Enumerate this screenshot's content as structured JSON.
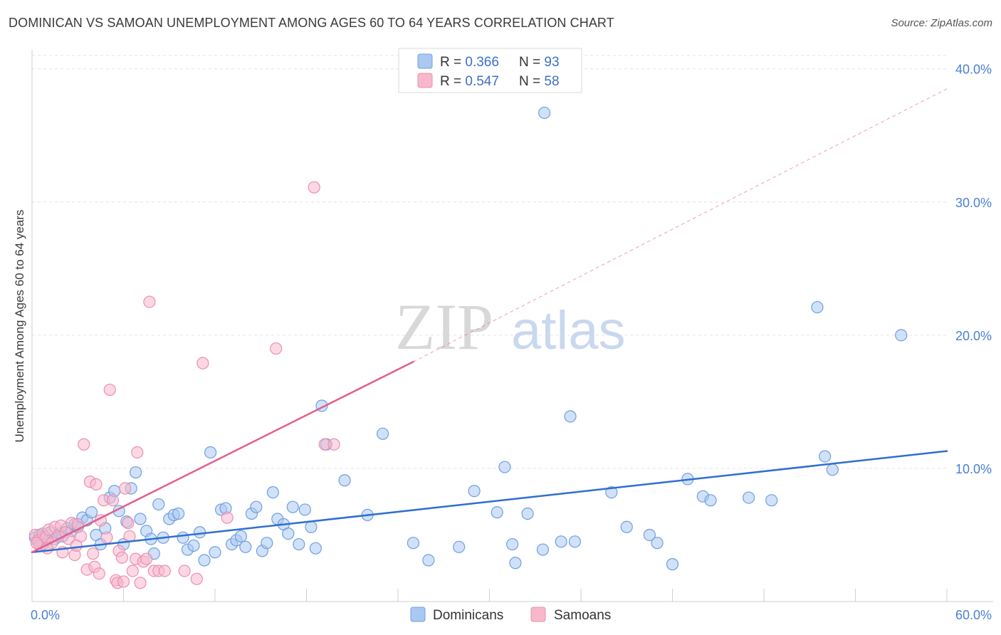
{
  "title": "DOMINICAN VS SAMOAN UNEMPLOYMENT AMONG AGES 60 TO 64 YEARS CORRELATION CHART",
  "source": "Source: ZipAtlas.com",
  "watermark": {
    "zip": "ZIP",
    "atlas": "atlas"
  },
  "colors": {
    "dominican_fill": "#a9c8f2",
    "dominican_stroke": "#6f9fe0",
    "dominican_line": "#2f6fce",
    "samoan_fill": "#f7b8cc",
    "samoan_stroke": "#ec8fae",
    "samoan_line": "#e0608c",
    "axis_text": "#4a7fd0",
    "grid": "#e3e3e3"
  },
  "legend": {
    "rows": [
      {
        "r_label": "R = ",
        "r_value": "0.366",
        "n_label": "N = ",
        "n_value": "93"
      },
      {
        "r_label": "R = ",
        "r_value": "0.547",
        "n_label": "N = ",
        "n_value": "58"
      }
    ]
  },
  "bottom_legend": [
    "Dominicans",
    "Samoans"
  ],
  "chart_data": {
    "type": "scatter",
    "title": "DOMINICAN VS SAMOAN UNEMPLOYMENT AMONG AGES 60 TO 64 YEARS CORRELATION CHART",
    "xlabel": "",
    "ylabel": "Unemployment Among Ages 60 to 64 years",
    "xlim": [
      0,
      60
    ],
    "ylim": [
      0,
      41
    ],
    "x_tick_labels": [
      "0.0%",
      "60.0%"
    ],
    "y_ticks": [
      10,
      20,
      30,
      40
    ],
    "y_tick_labels": [
      "10.0%",
      "20.0%",
      "30.0%",
      "40.0%"
    ],
    "grid": true,
    "legend_position": "top-center",
    "series": [
      {
        "name": "Dominicans",
        "R": 0.366,
        "N": 93,
        "trend": {
          "x": [
            0,
            60
          ],
          "y": [
            3.7,
            11.3
          ],
          "style": "solid"
        },
        "points": [
          [
            0.2,
            4.8
          ],
          [
            0.4,
            4.5
          ],
          [
            0.5,
            5.0
          ],
          [
            0.7,
            4.3
          ],
          [
            0.8,
            4.9
          ],
          [
            1.0,
            4.6
          ],
          [
            1.2,
            5.2
          ],
          [
            1.5,
            4.7
          ],
          [
            1.8,
            5.1
          ],
          [
            2.0,
            4.9
          ],
          [
            2.3,
            5.5
          ],
          [
            2.6,
            5.3
          ],
          [
            2.8,
            5.8
          ],
          [
            3.0,
            5.6
          ],
          [
            3.3,
            6.3
          ],
          [
            3.6,
            6.1
          ],
          [
            3.9,
            6.7
          ],
          [
            4.2,
            5.0
          ],
          [
            4.5,
            4.3
          ],
          [
            4.8,
            5.5
          ],
          [
            5.1,
            7.8
          ],
          [
            5.4,
            8.3
          ],
          [
            5.7,
            6.8
          ],
          [
            6.0,
            4.3
          ],
          [
            6.2,
            6.0
          ],
          [
            6.5,
            8.5
          ],
          [
            6.8,
            9.7
          ],
          [
            7.1,
            6.2
          ],
          [
            7.5,
            5.3
          ],
          [
            7.8,
            4.7
          ],
          [
            8.0,
            3.6
          ],
          [
            8.3,
            7.3
          ],
          [
            8.6,
            4.8
          ],
          [
            9.0,
            6.2
          ],
          [
            9.3,
            6.5
          ],
          [
            9.6,
            6.6
          ],
          [
            9.9,
            4.8
          ],
          [
            10.2,
            3.9
          ],
          [
            10.6,
            4.2
          ],
          [
            11.0,
            5.2
          ],
          [
            11.3,
            3.1
          ],
          [
            11.7,
            11.2
          ],
          [
            12.0,
            3.7
          ],
          [
            12.4,
            6.9
          ],
          [
            12.7,
            7.0
          ],
          [
            13.1,
            4.3
          ],
          [
            13.4,
            4.6
          ],
          [
            13.7,
            4.9
          ],
          [
            14.0,
            4.1
          ],
          [
            14.4,
            6.6
          ],
          [
            14.7,
            7.1
          ],
          [
            15.1,
            3.8
          ],
          [
            15.4,
            4.4
          ],
          [
            15.8,
            8.2
          ],
          [
            16.1,
            6.2
          ],
          [
            16.5,
            5.8
          ],
          [
            16.8,
            5.1
          ],
          [
            17.1,
            7.1
          ],
          [
            17.5,
            4.3
          ],
          [
            17.9,
            6.9
          ],
          [
            18.3,
            5.6
          ],
          [
            18.6,
            4.0
          ],
          [
            19.0,
            14.7
          ],
          [
            19.3,
            11.8
          ],
          [
            20.5,
            9.1
          ],
          [
            22.0,
            6.5
          ],
          [
            23.0,
            12.6
          ],
          [
            25.0,
            4.4
          ],
          [
            26.0,
            3.1
          ],
          [
            28.0,
            4.1
          ],
          [
            29.0,
            8.3
          ],
          [
            30.5,
            6.7
          ],
          [
            31.0,
            10.1
          ],
          [
            31.5,
            4.3
          ],
          [
            31.7,
            2.9
          ],
          [
            32.5,
            6.6
          ],
          [
            33.5,
            3.9
          ],
          [
            33.6,
            36.7
          ],
          [
            34.7,
            4.5
          ],
          [
            35.3,
            13.9
          ],
          [
            35.6,
            4.5
          ],
          [
            38.0,
            8.2
          ],
          [
            39.0,
            5.6
          ],
          [
            40.5,
            5.0
          ],
          [
            41.0,
            4.4
          ],
          [
            42.0,
            2.8
          ],
          [
            43.0,
            9.2
          ],
          [
            44.0,
            7.9
          ],
          [
            44.5,
            7.6
          ],
          [
            47.0,
            7.8
          ],
          [
            48.5,
            7.6
          ],
          [
            51.5,
            22.1
          ],
          [
            52.0,
            10.9
          ],
          [
            52.5,
            9.9
          ],
          [
            57.0,
            20.0
          ]
        ]
      },
      {
        "name": "Samoans",
        "R": 0.547,
        "N": 58,
        "trend": {
          "x": [
            0,
            25
          ],
          "y": [
            3.7,
            18.0
          ],
          "style": "solid",
          "extended": {
            "x": [
              25,
              60
            ],
            "y": [
              18.0,
              38.5
            ],
            "style": "dashed"
          }
        },
        "points": [
          [
            0.2,
            5.0
          ],
          [
            0.4,
            4.6
          ],
          [
            0.5,
            4.2
          ],
          [
            0.7,
            5.1
          ],
          [
            0.9,
            4.8
          ],
          [
            1.1,
            5.4
          ],
          [
            1.3,
            4.4
          ],
          [
            1.5,
            5.6
          ],
          [
            1.7,
            4.9
          ],
          [
            1.9,
            5.7
          ],
          [
            2.0,
            3.7
          ],
          [
            2.2,
            5.2
          ],
          [
            2.4,
            4.7
          ],
          [
            2.6,
            5.9
          ],
          [
            2.8,
            3.5
          ],
          [
            3.0,
            5.8
          ],
          [
            3.2,
            4.9
          ],
          [
            3.4,
            11.8
          ],
          [
            3.6,
            2.4
          ],
          [
            3.8,
            9.0
          ],
          [
            4.0,
            3.6
          ],
          [
            4.1,
            2.6
          ],
          [
            4.2,
            8.8
          ],
          [
            4.4,
            2.1
          ],
          [
            4.5,
            6.1
          ],
          [
            4.7,
            7.6
          ],
          [
            4.9,
            4.8
          ],
          [
            5.1,
            15.9
          ],
          [
            5.3,
            7.6
          ],
          [
            5.5,
            1.6
          ],
          [
            5.6,
            1.4
          ],
          [
            5.7,
            3.8
          ],
          [
            5.9,
            3.3
          ],
          [
            6.0,
            1.5
          ],
          [
            6.1,
            8.5
          ],
          [
            6.3,
            5.9
          ],
          [
            6.4,
            4.9
          ],
          [
            6.6,
            2.3
          ],
          [
            6.8,
            3.2
          ],
          [
            6.9,
            11.2
          ],
          [
            7.1,
            1.4
          ],
          [
            7.3,
            3.0
          ],
          [
            7.5,
            3.2
          ],
          [
            7.7,
            22.5
          ],
          [
            8.0,
            2.3
          ],
          [
            8.3,
            2.3
          ],
          [
            8.7,
            2.3
          ],
          [
            10.0,
            2.3
          ],
          [
            10.8,
            1.7
          ],
          [
            11.2,
            17.9
          ],
          [
            12.8,
            6.3
          ],
          [
            16.0,
            19.0
          ],
          [
            18.5,
            31.1
          ],
          [
            19.2,
            11.8
          ],
          [
            19.8,
            11.8
          ],
          [
            0.3,
            4.4
          ],
          [
            1.0,
            4.0
          ],
          [
            2.9,
            4.2
          ]
        ]
      }
    ]
  }
}
